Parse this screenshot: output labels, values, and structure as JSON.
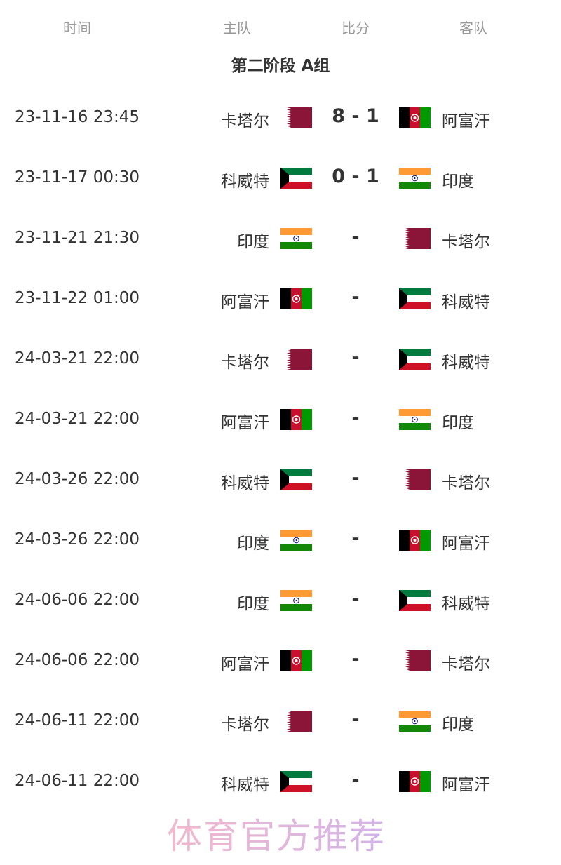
{
  "header": {
    "time": "时间",
    "home": "主队",
    "score": "比分",
    "away": "客队"
  },
  "title": "第二阶段 A组",
  "colors": {
    "qatar": "#8a1538",
    "afghan_black": "#000000",
    "afghan_red": "#c8102e",
    "afghan_green": "#009a00",
    "kuwait_green": "#007a3d",
    "kuwait_red": "#ce1126",
    "india_saffron": "#ff9933",
    "india_green": "#138808"
  },
  "matches": [
    {
      "time": "23-11-16 23:45",
      "home": "卡塔尔",
      "home_flag": "qatar",
      "score": "8 - 1",
      "away": "阿富汗",
      "away_flag": "afghanistan"
    },
    {
      "time": "23-11-17 00:30",
      "home": "科威特",
      "home_flag": "kuwait",
      "score": "0 - 1",
      "away": "印度",
      "away_flag": "india"
    },
    {
      "time": "23-11-21 21:30",
      "home": "印度",
      "home_flag": "india",
      "score": "-",
      "away": "卡塔尔",
      "away_flag": "qatar"
    },
    {
      "time": "23-11-22 01:00",
      "home": "阿富汗",
      "home_flag": "afghanistan",
      "score": "-",
      "away": "科威特",
      "away_flag": "kuwait"
    },
    {
      "time": "24-03-21 22:00",
      "home": "卡塔尔",
      "home_flag": "qatar",
      "score": "-",
      "away": "科威特",
      "away_flag": "kuwait"
    },
    {
      "time": "24-03-21 22:00",
      "home": "阿富汗",
      "home_flag": "afghanistan",
      "score": "-",
      "away": "印度",
      "away_flag": "india"
    },
    {
      "time": "24-03-26 22:00",
      "home": "科威特",
      "home_flag": "kuwait",
      "score": "-",
      "away": "卡塔尔",
      "away_flag": "qatar"
    },
    {
      "time": "24-03-26 22:00",
      "home": "印度",
      "home_flag": "india",
      "score": "-",
      "away": "阿富汗",
      "away_flag": "afghanistan"
    },
    {
      "time": "24-06-06 22:00",
      "home": "印度",
      "home_flag": "india",
      "score": "-",
      "away": "科威特",
      "away_flag": "kuwait"
    },
    {
      "time": "24-06-06 22:00",
      "home": "阿富汗",
      "home_flag": "afghanistan",
      "score": "-",
      "away": "卡塔尔",
      "away_flag": "qatar"
    },
    {
      "time": "24-06-11 22:00",
      "home": "卡塔尔",
      "home_flag": "qatar",
      "score": "-",
      "away": "印度",
      "away_flag": "india"
    },
    {
      "time": "24-06-11 22:00",
      "home": "科威特",
      "home_flag": "kuwait",
      "score": "-",
      "away": "阿富汗",
      "away_flag": "afghanistan"
    }
  ],
  "watermark": "体育官方推荐"
}
